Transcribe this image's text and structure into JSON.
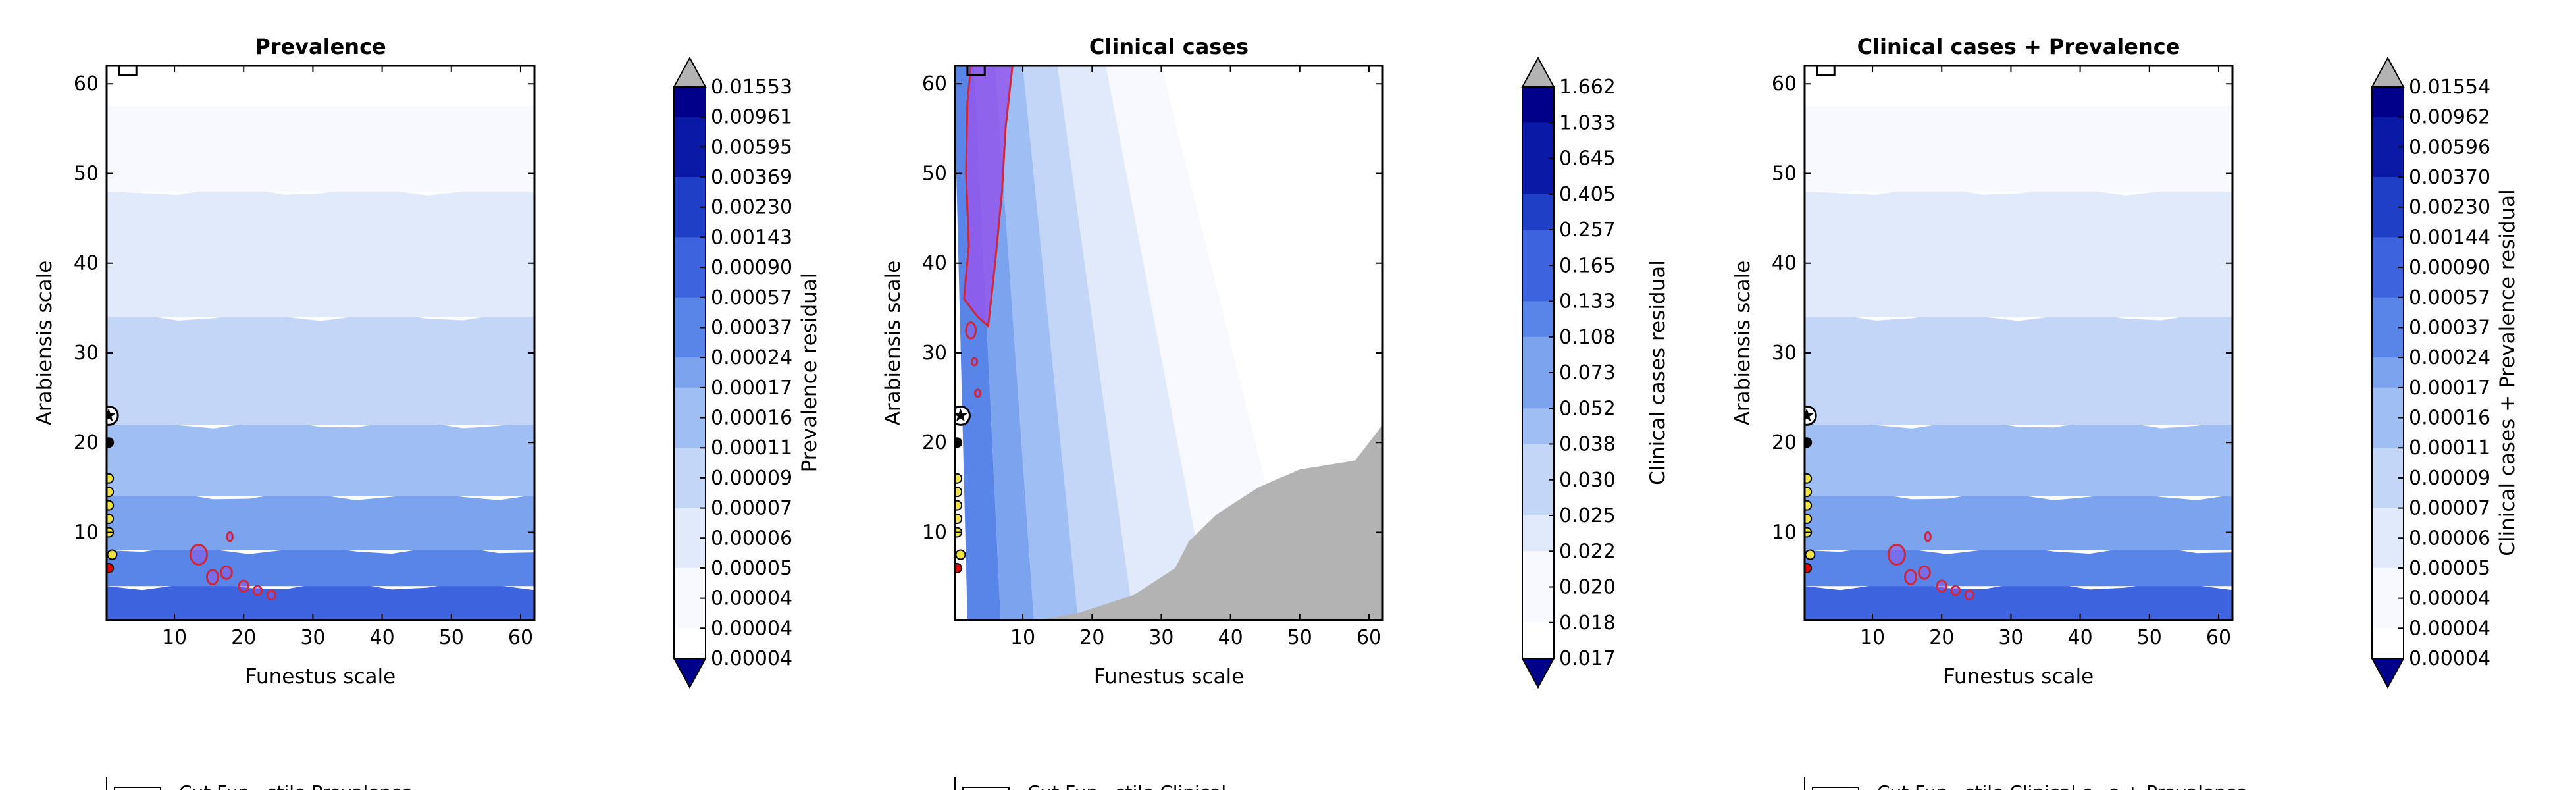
{
  "colors": {
    "cmap": [
      "#00008b",
      "#0a1aa6",
      "#1f3fc7",
      "#3d63de",
      "#5a85e8",
      "#7ca3ee",
      "#9fbff4",
      "#c3d6f8",
      "#e1eafb",
      "#f7f9fe",
      "#ffffff"
    ],
    "under": "#00008b",
    "over": "#b3b3b3",
    "exceed_fill": "#b3b3b3",
    "contour_line": "#cc2a3c",
    "contour_fill": "#9458ec",
    "star_fill": "#ffffff",
    "marker_red": "#e8000b",
    "marker_yellow": "#f0e442",
    "marker_black": "#000000"
  },
  "chart_data": [
    {
      "type": "heatmap",
      "title": "Prevalence",
      "xlabel": "Funestus scale",
      "ylabel": "Arabiensis scale",
      "xlim": [
        0.2,
        62
      ],
      "ylim": [
        0.2,
        62
      ],
      "xticks": [
        10,
        20,
        30,
        40,
        50,
        60
      ],
      "yticks": [
        10,
        20,
        30,
        40,
        50,
        60
      ],
      "colorbar_label": "Prevalence residual",
      "colorbar_levels": [
        "0.01553",
        "0.00961",
        "0.00595",
        "0.00369",
        "0.00230",
        "0.00143",
        "0.00090",
        "0.00057",
        "0.00037",
        "0.00024",
        "0.00017",
        "0.00016",
        "0.00011",
        "0.00009",
        "0.00007",
        "0.00006",
        "0.00005",
        "0.00004",
        "0.00004",
        "0.00004"
      ],
      "legend_text": "Cut Fun...stile Prevalence",
      "field_bands": [
        {
          "y": 0,
          "level": 3
        },
        {
          "y": 4,
          "level": 4
        },
        {
          "y": 8,
          "level": 5
        },
        {
          "y": 14,
          "level": 6
        },
        {
          "y": 22,
          "level": 7
        },
        {
          "y": 34,
          "level": 8
        },
        {
          "y": 48,
          "level": 9
        },
        {
          "y": 58,
          "level": 10
        }
      ],
      "exceed_region": [],
      "highlight_regions": [
        {
          "cx": 13.5,
          "cy": 7.5,
          "rx": 1.2,
          "ry": 1.1
        },
        {
          "cx": 15.5,
          "cy": 5,
          "rx": 0.8,
          "ry": 0.8
        },
        {
          "cx": 17.5,
          "cy": 5.5,
          "rx": 0.8,
          "ry": 0.7
        },
        {
          "cx": 20,
          "cy": 4,
          "rx": 0.7,
          "ry": 0.6
        },
        {
          "cx": 22,
          "cy": 3.5,
          "rx": 0.6,
          "ry": 0.5
        },
        {
          "cx": 24,
          "cy": 3,
          "rx": 0.6,
          "ry": 0.5
        },
        {
          "cx": 18,
          "cy": 9.5,
          "rx": 0.4,
          "ry": 0.5
        }
      ],
      "markers": [
        {
          "x": 0.5,
          "y": 23,
          "kind": "star"
        },
        {
          "x": 0.5,
          "y": 20,
          "kind": "black"
        },
        {
          "x": 0.5,
          "y": 16,
          "kind": "yellow"
        },
        {
          "x": 0.5,
          "y": 14.5,
          "kind": "yellow"
        },
        {
          "x": 0.5,
          "y": 13,
          "kind": "yellow"
        },
        {
          "x": 0.5,
          "y": 11.5,
          "kind": "yellow"
        },
        {
          "x": 0.5,
          "y": 10,
          "kind": "yellow"
        },
        {
          "x": 1,
          "y": 7.5,
          "kind": "yellow"
        },
        {
          "x": 0.5,
          "y": 6,
          "kind": "red"
        }
      ],
      "box_marker": {
        "x0": 2,
        "x1": 4.5,
        "y0": 61,
        "y1": 62
      }
    },
    {
      "type": "heatmap",
      "title": "Clinical cases",
      "xlabel": "Funestus scale",
      "ylabel": "Arabiensis scale",
      "xlim": [
        0.2,
        62
      ],
      "ylim": [
        0.2,
        62
      ],
      "xticks": [
        10,
        20,
        30,
        40,
        50,
        60
      ],
      "yticks": [
        10,
        20,
        30,
        40,
        50,
        60
      ],
      "colorbar_label": "Clinical cases residual",
      "colorbar_levels": [
        "1.662",
        "1.033",
        "0.645",
        "0.405",
        "0.257",
        "0.165",
        "0.133",
        "0.108",
        "0.073",
        "0.052",
        "0.038",
        "0.030",
        "0.025",
        "0.022",
        "0.020",
        "0.018",
        "0.017"
      ],
      "legend_text": "Cut Fun...stile Clinical",
      "field_columns": [
        {
          "x": 0,
          "level": 4
        },
        {
          "x": 3,
          "level": 5
        },
        {
          "x": 6,
          "level": 6
        },
        {
          "x": 10,
          "level": 7
        },
        {
          "x": 15,
          "level": 8
        },
        {
          "x": 22,
          "level": 9
        },
        {
          "x": 30,
          "level": 10
        }
      ],
      "exceed_region": [
        [
          62,
          22
        ],
        [
          58,
          18
        ],
        [
          50,
          17
        ],
        [
          44,
          15
        ],
        [
          38,
          12
        ],
        [
          34,
          9
        ],
        [
          32,
          6
        ],
        [
          26,
          3
        ],
        [
          18,
          1
        ],
        [
          12,
          0.2
        ],
        [
          62,
          0.2
        ]
      ],
      "highlight_regions": [
        {
          "polygon": [
            [
              1.5,
              36
            ],
            [
              2.2,
              42
            ],
            [
              1.8,
              50
            ],
            [
              2,
              58
            ],
            [
              2.5,
              62
            ],
            [
              8.5,
              62
            ],
            [
              7.5,
              55
            ],
            [
              7,
              48
            ],
            [
              6,
              40
            ],
            [
              5,
              33
            ],
            [
              3.5,
              34
            ]
          ]
        },
        {
          "cx": 2.5,
          "cy": 32.5,
          "rx": 0.7,
          "ry": 0.9
        },
        {
          "cx": 3,
          "cy": 29,
          "rx": 0.4,
          "ry": 0.4
        },
        {
          "cx": 3.5,
          "cy": 25.5,
          "rx": 0.4,
          "ry": 0.4
        }
      ],
      "markers": [
        {
          "x": 1,
          "y": 23,
          "kind": "star"
        },
        {
          "x": 0.5,
          "y": 20,
          "kind": "black"
        },
        {
          "x": 0.5,
          "y": 16,
          "kind": "yellow"
        },
        {
          "x": 0.5,
          "y": 14.5,
          "kind": "yellow"
        },
        {
          "x": 0.5,
          "y": 13,
          "kind": "yellow"
        },
        {
          "x": 0.5,
          "y": 11.5,
          "kind": "yellow"
        },
        {
          "x": 0.5,
          "y": 10,
          "kind": "yellow"
        },
        {
          "x": 1,
          "y": 7.5,
          "kind": "yellow"
        },
        {
          "x": 0.5,
          "y": 6,
          "kind": "red"
        }
      ],
      "box_marker": {
        "x0": 2,
        "x1": 4.5,
        "y0": 61,
        "y1": 62
      }
    },
    {
      "type": "heatmap",
      "title": "Clinical cases + Prevalence",
      "xlabel": "Funestus scale",
      "ylabel": "Arabiensis scale",
      "xlim": [
        0.2,
        62
      ],
      "ylim": [
        0.2,
        62
      ],
      "xticks": [
        10,
        20,
        30,
        40,
        50,
        60
      ],
      "yticks": [
        10,
        20,
        30,
        40,
        50,
        60
      ],
      "colorbar_label": "Clinical cases + Prevalence residual",
      "colorbar_levels": [
        "0.01554",
        "0.00962",
        "0.00596",
        "0.00370",
        "0.00230",
        "0.00144",
        "0.00090",
        "0.00057",
        "0.00037",
        "0.00024",
        "0.00017",
        "0.00016",
        "0.00011",
        "0.00009",
        "0.00007",
        "0.00006",
        "0.00005",
        "0.00004",
        "0.00004",
        "0.00004"
      ],
      "legend_text": "Cut Fun...stile Clinical c...s + Prevalence",
      "field_bands": [
        {
          "y": 0,
          "level": 3
        },
        {
          "y": 4,
          "level": 4
        },
        {
          "y": 8,
          "level": 5
        },
        {
          "y": 14,
          "level": 6
        },
        {
          "y": 22,
          "level": 7
        },
        {
          "y": 34,
          "level": 8
        },
        {
          "y": 48,
          "level": 9
        },
        {
          "y": 58,
          "level": 10
        }
      ],
      "exceed_region": [],
      "highlight_regions": [
        {
          "cx": 13.5,
          "cy": 7.5,
          "rx": 1.2,
          "ry": 1.1
        },
        {
          "cx": 15.5,
          "cy": 5,
          "rx": 0.8,
          "ry": 0.8
        },
        {
          "cx": 17.5,
          "cy": 5.5,
          "rx": 0.8,
          "ry": 0.7
        },
        {
          "cx": 20,
          "cy": 4,
          "rx": 0.7,
          "ry": 0.6
        },
        {
          "cx": 22,
          "cy": 3.5,
          "rx": 0.6,
          "ry": 0.5
        },
        {
          "cx": 24,
          "cy": 3,
          "rx": 0.6,
          "ry": 0.5
        },
        {
          "cx": 18,
          "cy": 9.5,
          "rx": 0.4,
          "ry": 0.5
        }
      ],
      "markers": [
        {
          "x": 0.5,
          "y": 23,
          "kind": "star"
        },
        {
          "x": 0.5,
          "y": 20,
          "kind": "black"
        },
        {
          "x": 0.5,
          "y": 16,
          "kind": "yellow"
        },
        {
          "x": 0.5,
          "y": 14.5,
          "kind": "yellow"
        },
        {
          "x": 0.5,
          "y": 13,
          "kind": "yellow"
        },
        {
          "x": 0.5,
          "y": 11.5,
          "kind": "yellow"
        },
        {
          "x": 0.5,
          "y": 10,
          "kind": "yellow"
        },
        {
          "x": 1,
          "y": 7.5,
          "kind": "yellow"
        },
        {
          "x": 0.5,
          "y": 6,
          "kind": "red"
        }
      ],
      "box_marker": {
        "x0": 2,
        "x1": 4.5,
        "y0": 61,
        "y1": 62
      }
    }
  ]
}
